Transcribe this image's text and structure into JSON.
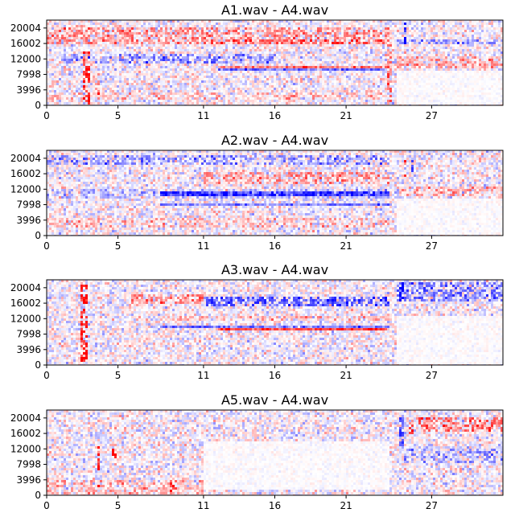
{
  "figure": {
    "background": "#ffffff",
    "colormap": [
      "#0000ff",
      "#ffffff",
      "#ff0000"
    ]
  },
  "chart_data": [
    {
      "type": "heatmap",
      "title": "A1.wav - A4.wav",
      "xlabel": "",
      "ylabel": "",
      "xlim": [
        0,
        32
      ],
      "ylim": [
        0,
        22050
      ],
      "x_ticks": [
        0,
        5,
        11,
        16,
        21,
        27
      ],
      "y_ticks": [
        0,
        3996,
        7998,
        12000,
        16002,
        20004
      ],
      "grid": false,
      "legend": "none",
      "features": [
        {
          "kind": "band",
          "x": [
            0,
            24
          ],
          "y": [
            16002,
            20004
          ],
          "value": 0.45
        },
        {
          "kind": "band",
          "x": [
            1,
            16
          ],
          "y": [
            11000,
            13500
          ],
          "value": -0.45
        },
        {
          "kind": "band",
          "x": [
            11,
            24
          ],
          "y": [
            15500,
            17000
          ],
          "value": 0.35
        },
        {
          "kind": "band",
          "x": [
            24.5,
            32
          ],
          "y": [
            15500,
            17000
          ],
          "value": -0.4
        },
        {
          "kind": "band",
          "x": [
            24.5,
            32
          ],
          "y": [
            9500,
            12500
          ],
          "value": 0.3
        },
        {
          "kind": "band",
          "x": [
            0,
            24
          ],
          "y": [
            1500,
            3500
          ],
          "value": 0.25
        },
        {
          "kind": "line",
          "x": [
            12,
            24
          ],
          "y": [
            9200,
            9200
          ],
          "value": -0.55
        },
        {
          "kind": "line",
          "x": [
            12,
            24
          ],
          "y": [
            10000,
            10000
          ],
          "value": 0.5
        },
        {
          "kind": "column",
          "x": [
            2.6,
            3.0
          ],
          "y": [
            0,
            14000
          ],
          "value": 0.85
        },
        {
          "kind": "column",
          "x": [
            3.5,
            3.8
          ],
          "y": [
            1000,
            12000
          ],
          "value": 0.55
        },
        {
          "kind": "column",
          "x": [
            23.9,
            24.2
          ],
          "y": [
            0,
            16000
          ],
          "value": 0.6
        },
        {
          "kind": "column",
          "x": [
            25.0,
            25.2
          ],
          "y": [
            16000,
            21500
          ],
          "value": -0.9
        },
        {
          "kind": "quiet",
          "x": [
            24.5,
            32
          ],
          "y": [
            0,
            9000
          ],
          "value": 0.0
        }
      ]
    },
    {
      "type": "heatmap",
      "title": "A2.wav - A4.wav",
      "xlabel": "",
      "ylabel": "",
      "xlim": [
        0,
        32
      ],
      "ylim": [
        0,
        22050
      ],
      "x_ticks": [
        0,
        5,
        11,
        16,
        21,
        27
      ],
      "y_ticks": [
        0,
        3996,
        7998,
        12000,
        16002,
        20004
      ],
      "grid": false,
      "legend": "none",
      "features": [
        {
          "kind": "band",
          "x": [
            0,
            24
          ],
          "y": [
            18500,
            21000
          ],
          "value": -0.45
        },
        {
          "kind": "band",
          "x": [
            11,
            24
          ],
          "y": [
            13500,
            16500
          ],
          "value": 0.4
        },
        {
          "kind": "band",
          "x": [
            0,
            24
          ],
          "y": [
            9500,
            12000
          ],
          "value": -0.3
        },
        {
          "kind": "line",
          "x": [
            8,
            24
          ],
          "y": [
            10800,
            10800
          ],
          "value": -0.6
        },
        {
          "kind": "line",
          "x": [
            8,
            24
          ],
          "y": [
            8000,
            8000
          ],
          "value": -0.5
        },
        {
          "kind": "band",
          "x": [
            0,
            24
          ],
          "y": [
            2000,
            4500
          ],
          "value": 0.25
        },
        {
          "kind": "band",
          "x": [
            24.5,
            32
          ],
          "y": [
            10500,
            12500
          ],
          "value": 0.35
        },
        {
          "kind": "column",
          "x": [
            25.0,
            25.3
          ],
          "y": [
            15000,
            19500
          ],
          "value": 0.8
        },
        {
          "kind": "column",
          "x": [
            25.5,
            25.7
          ],
          "y": [
            16000,
            21000
          ],
          "value": -0.85
        },
        {
          "kind": "column",
          "x": [
            16.2,
            16.4
          ],
          "y": [
            6000,
            15000
          ],
          "value": 0.4
        },
        {
          "kind": "quiet",
          "x": [
            24.5,
            32
          ],
          "y": [
            0,
            9500
          ],
          "value": 0.0
        }
      ]
    },
    {
      "type": "heatmap",
      "title": "A3.wav - A4.wav",
      "xlabel": "",
      "ylabel": "",
      "xlim": [
        0,
        32
      ],
      "ylim": [
        0,
        22050
      ],
      "x_ticks": [
        0,
        5,
        11,
        16,
        21,
        27
      ],
      "y_ticks": [
        0,
        3996,
        7998,
        12000,
        16002,
        20004
      ],
      "grid": false,
      "legend": "none",
      "features": [
        {
          "kind": "column",
          "x": [
            2.4,
            2.9
          ],
          "y": [
            1000,
            21000
          ],
          "value": 0.95
        },
        {
          "kind": "band",
          "x": [
            11,
            24
          ],
          "y": [
            15000,
            17500
          ],
          "value": -0.65
        },
        {
          "kind": "band",
          "x": [
            6,
            11
          ],
          "y": [
            15500,
            18000
          ],
          "value": 0.45
        },
        {
          "kind": "line",
          "x": [
            12,
            24
          ],
          "y": [
            9200,
            9200
          ],
          "value": 0.7
        },
        {
          "kind": "line",
          "x": [
            8,
            24
          ],
          "y": [
            9800,
            9800
          ],
          "value": -0.5
        },
        {
          "kind": "band",
          "x": [
            8,
            24
          ],
          "y": [
            11500,
            12500
          ],
          "value": 0.3
        },
        {
          "kind": "band",
          "x": [
            24.5,
            32
          ],
          "y": [
            16500,
            21500
          ],
          "value": -0.5
        },
        {
          "kind": "column",
          "x": [
            24.8,
            25.1
          ],
          "y": [
            16000,
            21500
          ],
          "value": -0.9
        },
        {
          "kind": "quiet",
          "x": [
            24.5,
            32
          ],
          "y": [
            0,
            13000
          ],
          "value": 0.0
        }
      ]
    },
    {
      "type": "heatmap",
      "title": "A5.wav - A4.wav",
      "xlabel": "",
      "ylabel": "",
      "xlim": [
        0,
        32
      ],
      "ylim": [
        0,
        22050
      ],
      "x_ticks": [
        0,
        5,
        11,
        16,
        21,
        27
      ],
      "y_ticks": [
        0,
        3996,
        7998,
        12000,
        16002,
        20004
      ],
      "grid": false,
      "legend": "none",
      "features": [
        {
          "kind": "column",
          "x": [
            3.5,
            3.8
          ],
          "y": [
            1000,
            13000
          ],
          "value": 0.8
        },
        {
          "kind": "block",
          "x": [
            4.5,
            4.9
          ],
          "y": [
            9500,
            12000
          ],
          "value": 0.95
        },
        {
          "kind": "column",
          "x": [
            8.6,
            8.9
          ],
          "y": [
            1000,
            3500
          ],
          "value": 0.8
        },
        {
          "kind": "band",
          "x": [
            26,
            32
          ],
          "y": [
            16500,
            20000
          ],
          "value": 0.55
        },
        {
          "kind": "band",
          "x": [
            25,
            32
          ],
          "y": [
            8500,
            12000
          ],
          "value": -0.35
        },
        {
          "kind": "band",
          "x": [
            0,
            11
          ],
          "y": [
            0,
            4000
          ],
          "value": 0.3
        },
        {
          "kind": "column",
          "x": [
            24.8,
            25.1
          ],
          "y": [
            12000,
            21000
          ],
          "value": -0.6
        },
        {
          "kind": "column",
          "x": [
            25.4,
            25.7
          ],
          "y": [
            15000,
            19000
          ],
          "value": 0.7
        },
        {
          "kind": "quiet",
          "x": [
            11,
            24
          ],
          "y": [
            1500,
            14000
          ],
          "value": 0.0
        }
      ]
    }
  ]
}
